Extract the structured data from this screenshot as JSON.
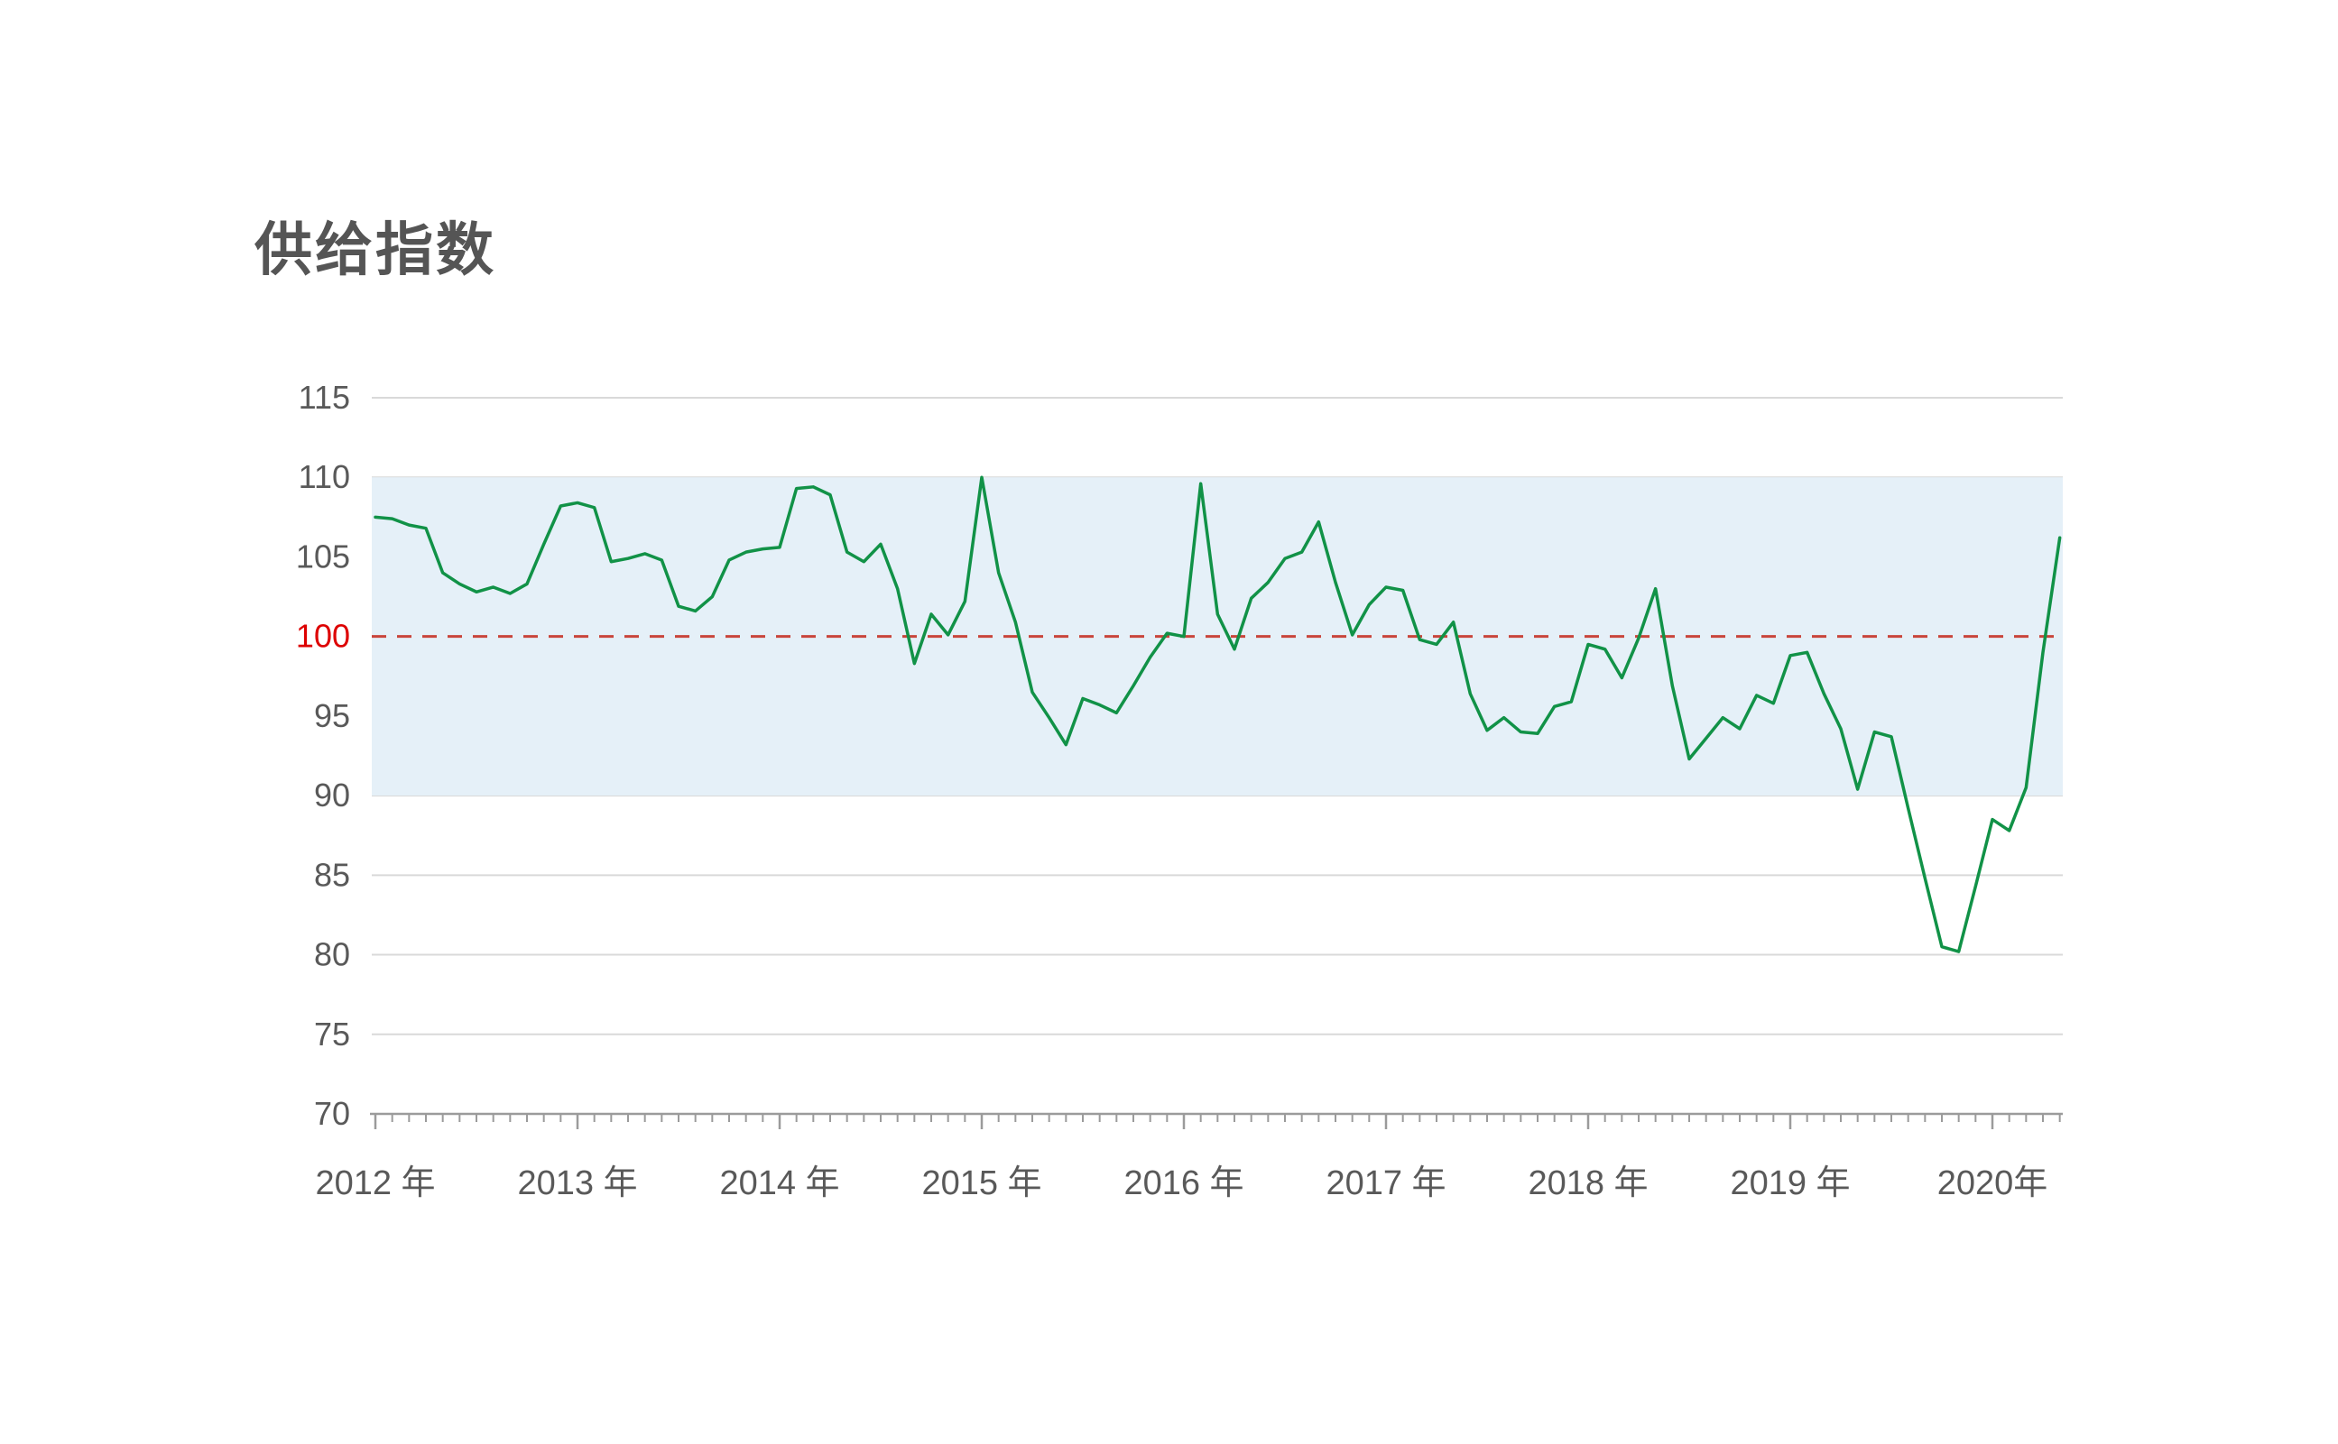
{
  "chart_data": {
    "type": "line",
    "title": "供给指数",
    "xlabel": "",
    "ylabel": "",
    "grid": "horizontal",
    "legend": "none",
    "y_axis": {
      "min": 70,
      "max": 115,
      "ticks": [
        70,
        75,
        80,
        85,
        90,
        95,
        100,
        105,
        110,
        115
      ],
      "highlight_tick": 100
    },
    "x_axis": {
      "tick_labels": [
        "2012 年",
        "2013 年",
        "2014 年",
        "2015 年",
        "2016 年",
        "2017 年",
        "2018 年",
        "2019 年",
        "2020年"
      ],
      "minor_tick_unit": "month"
    },
    "band": {
      "from": 90,
      "to": 110
    },
    "reference_line": {
      "value": 100,
      "style": "dashed"
    },
    "series": [
      {
        "name": "供给指数",
        "frequency": "monthly",
        "start": "2012-01",
        "values": [
          107.5,
          107.4,
          107.0,
          106.8,
          104.0,
          103.3,
          102.8,
          103.1,
          102.7,
          103.3,
          105.8,
          108.2,
          108.4,
          108.1,
          104.7,
          104.9,
          105.2,
          104.8,
          101.9,
          101.6,
          102.5,
          104.8,
          105.3,
          105.5,
          105.6,
          109.3,
          109.4,
          108.9,
          105.3,
          104.7,
          105.8,
          103.0,
          98.3,
          101.4,
          100.1,
          102.2,
          110.0,
          104.0,
          100.9,
          96.5,
          94.9,
          93.2,
          96.1,
          95.7,
          95.2,
          96.9,
          98.7,
          100.2,
          100.0,
          109.6,
          101.4,
          99.2,
          102.4,
          103.4,
          104.9,
          105.3,
          107.2,
          103.4,
          100.1,
          102.0,
          103.1,
          102.9,
          99.8,
          99.5,
          100.9,
          96.4,
          94.1,
          94.9,
          94.0,
          93.9,
          95.6,
          95.9,
          99.5,
          99.2,
          97.4,
          99.9,
          103.0,
          96.9,
          92.3,
          93.6,
          94.9,
          94.2,
          96.3,
          95.8,
          98.8,
          99.0,
          96.4,
          94.2,
          90.4,
          94.0,
          93.7,
          89.2,
          84.8,
          80.5,
          80.2,
          84.3,
          88.5,
          87.8,
          90.5,
          99.0,
          106.2
        ]
      }
    ]
  },
  "colors": {
    "series_line": "#119247",
    "band_fill": "#e5f0f8",
    "reference_line": "#c9453b",
    "reference_label": "#dd0000",
    "grid_line": "#d9d9d9",
    "axis_line": "#9b9b9b",
    "tick_label": "#595959",
    "title_text": "#555555"
  }
}
